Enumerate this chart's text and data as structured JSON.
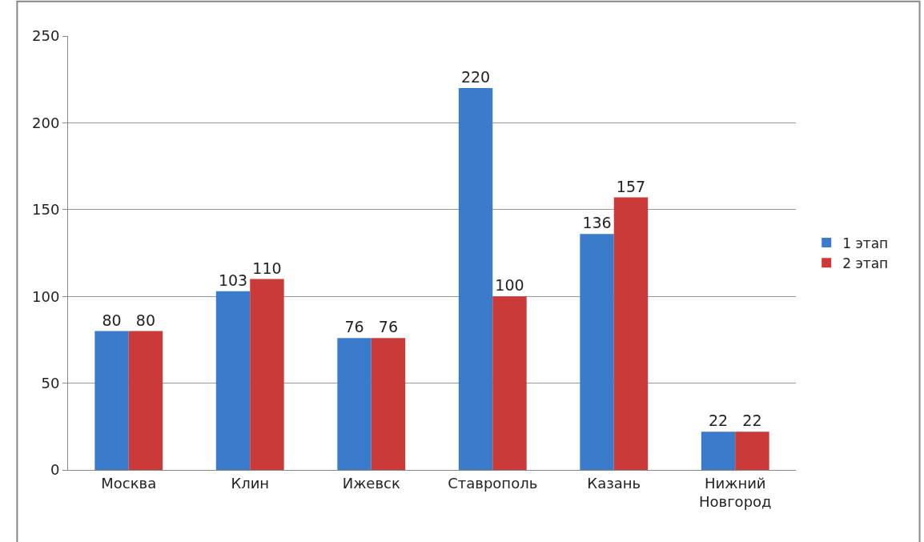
{
  "chart_data": {
    "type": "bar",
    "categories": [
      "Москва",
      "Клин",
      "Ижевск",
      "Ставрополь",
      "Казань",
      "Нижний Новгород"
    ],
    "series": [
      {
        "name": "1 этап",
        "color": "#3b7bcb",
        "values": [
          80,
          103,
          76,
          220,
          136,
          22
        ]
      },
      {
        "name": "2 этап",
        "color": "#c93a38",
        "values": [
          80,
          110,
          76,
          100,
          157,
          22
        ]
      }
    ],
    "ylim": [
      0,
      250
    ],
    "yticks": [
      0,
      50,
      100,
      150,
      200,
      250
    ],
    "grid": "y",
    "legend": "right",
    "data_labels": true
  }
}
